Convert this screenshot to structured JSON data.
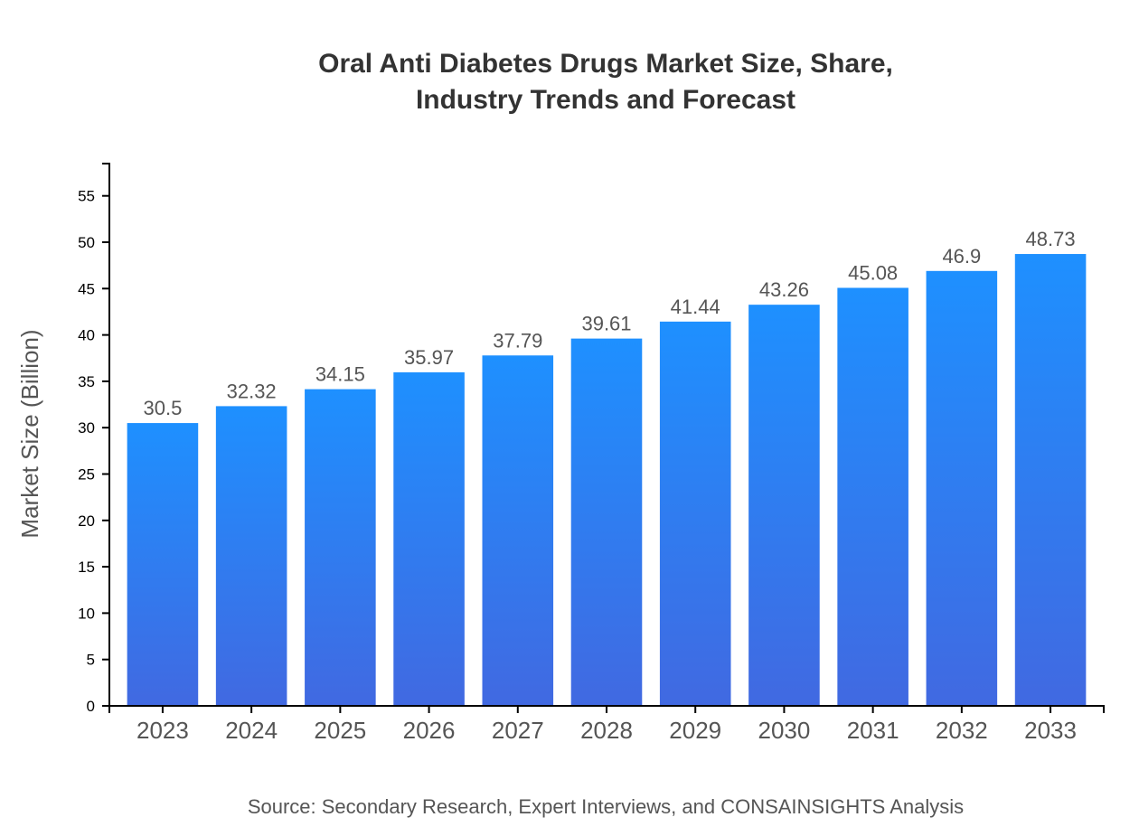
{
  "chart_data": {
    "type": "bar",
    "title_lines": [
      "Oral Anti Diabetes Drugs Market Size, Share,",
      "Industry Trends and Forecast"
    ],
    "xlabel": "",
    "ylabel": "Market Size (Billion)",
    "categories": [
      "2023",
      "2024",
      "2025",
      "2026",
      "2027",
      "2028",
      "2029",
      "2030",
      "2031",
      "2032",
      "2033"
    ],
    "values": [
      30.5,
      32.32,
      34.15,
      35.97,
      37.79,
      39.61,
      41.44,
      43.26,
      45.08,
      46.9,
      48.73
    ],
    "ylim": [
      0,
      58.48
    ],
    "yticks": [
      0,
      5,
      10,
      15,
      20,
      25,
      30,
      35,
      40,
      45,
      50,
      55
    ],
    "grid": false,
    "colors": {
      "bar_top": "#1e90ff",
      "bar_bottom": "#4169e1",
      "label": "#555555",
      "title": "#333333"
    },
    "source": "Source: Secondary Research, Expert Interviews, and CONSAINSIGHTS Analysis"
  }
}
